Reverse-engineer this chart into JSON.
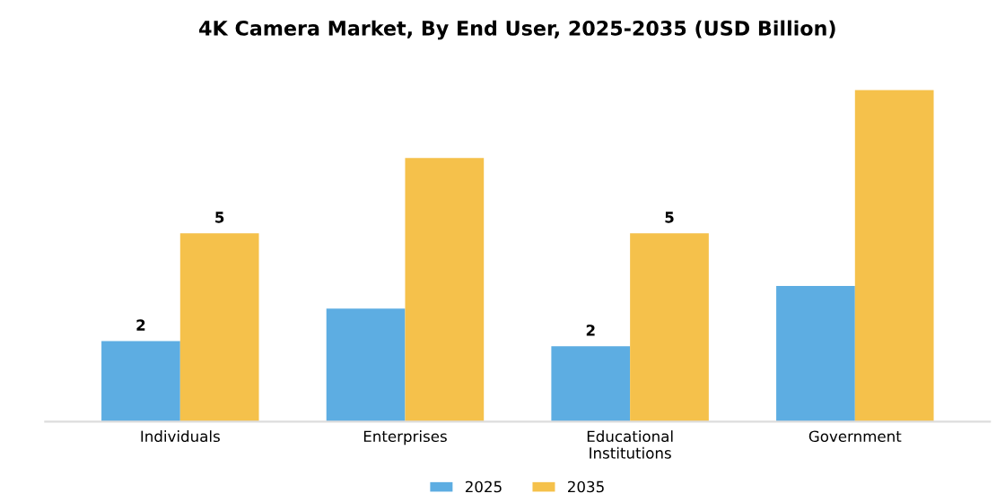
{
  "chart_data": {
    "type": "bar",
    "title": "4K Camera Market, By End User, 2025-2035 (USD Billion)",
    "categories": [
      "Individuals",
      "Enterprises",
      "Educational\nInstitutions",
      "Government"
    ],
    "series": [
      {
        "name": "2025",
        "color": "#5dade2",
        "values": [
          2.14,
          3.0,
          2.0,
          3.6
        ],
        "value_labels": [
          "2",
          null,
          "2",
          null
        ]
      },
      {
        "name": "2035",
        "color": "#f5c14b",
        "values": [
          5.0,
          7.0,
          5.0,
          8.8
        ],
        "value_labels": [
          "5",
          null,
          "5",
          null
        ]
      }
    ],
    "tick_labels": "x",
    "grid": false,
    "legend": "bottom"
  }
}
